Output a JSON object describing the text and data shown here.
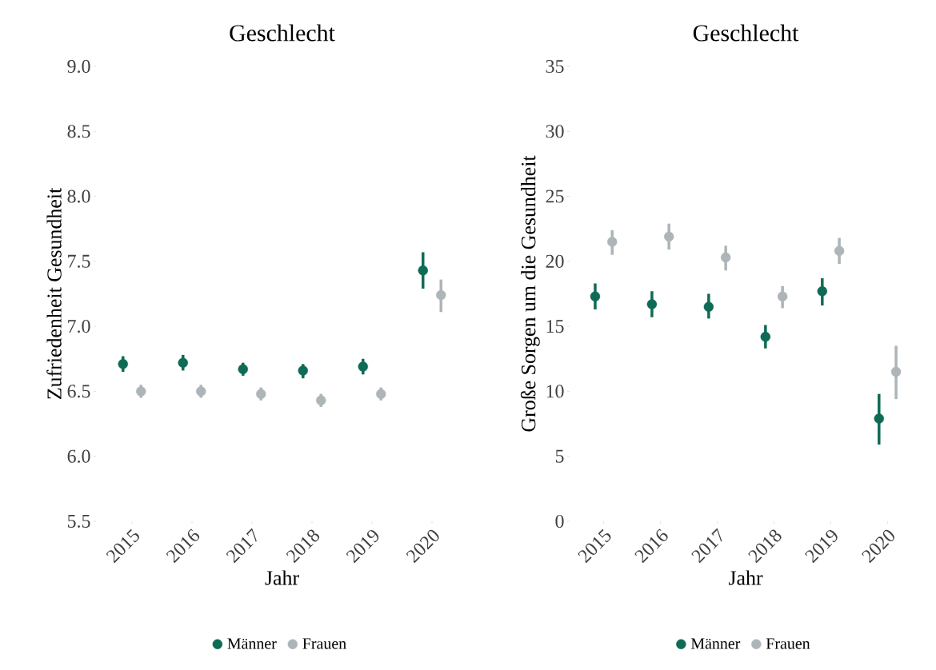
{
  "chart_data": [
    {
      "type": "scatter",
      "title": "Geschlecht",
      "xlabel": "Jahr",
      "ylabel": "Zufriedenheit Gesundheit",
      "categories": [
        "2015",
        "2016",
        "2017",
        "2018",
        "2019",
        "2020"
      ],
      "marker": "circle",
      "legend": "bottom",
      "ylim": [
        5.5,
        9.0
      ],
      "yticks": [
        {
          "value": 5.5,
          "label": "5.5"
        },
        {
          "value": 6.0,
          "label": "6.0"
        },
        {
          "value": 6.5,
          "label": "6.5"
        },
        {
          "value": 7.0,
          "label": "7.0"
        },
        {
          "value": 7.5,
          "label": "7.5"
        },
        {
          "value": 8.0,
          "label": "8.0"
        },
        {
          "value": 8.5,
          "label": "8.5"
        },
        {
          "value": 9.0,
          "label": "9.0"
        }
      ],
      "series": [
        {
          "name": "Männer",
          "color": "#0f6b55",
          "values": [
            6.71,
            6.72,
            6.67,
            6.66,
            6.69,
            7.43
          ],
          "errors": [
            [
              6.65,
              6.77
            ],
            [
              6.66,
              6.78
            ],
            [
              6.62,
              6.72
            ],
            [
              6.6,
              6.71
            ],
            [
              6.63,
              6.75
            ],
            [
              7.29,
              7.57
            ]
          ]
        },
        {
          "name": "Frauen",
          "color": "#adb5b8",
          "values": [
            6.5,
            6.5,
            6.48,
            6.43,
            6.48,
            7.24
          ],
          "errors": [
            [
              6.45,
              6.55
            ],
            [
              6.45,
              6.55
            ],
            [
              6.43,
              6.53
            ],
            [
              6.38,
              6.48
            ],
            [
              6.43,
              6.53
            ],
            [
              7.11,
              7.36
            ]
          ]
        }
      ]
    },
    {
      "type": "scatter",
      "title": "Geschlecht",
      "xlabel": "Jahr",
      "ylabel": "Große Sorgen um die Gesundheit",
      "categories": [
        "2015",
        "2016",
        "2017",
        "2018",
        "2019",
        "2020"
      ],
      "marker": "circle",
      "legend": "bottom",
      "ylim": [
        0,
        35
      ],
      "yticks": [
        0,
        5,
        10,
        15,
        20,
        25,
        30,
        35
      ],
      "series": [
        {
          "name": "Männer",
          "color": "#0f6b55",
          "values": [
            17.3,
            16.7,
            16.5,
            14.2,
            17.7,
            7.9
          ],
          "errors": [
            [
              16.3,
              18.3
            ],
            [
              15.7,
              17.7
            ],
            [
              15.6,
              17.5
            ],
            [
              13.3,
              15.1
            ],
            [
              16.6,
              18.7
            ],
            [
              5.9,
              9.8
            ]
          ]
        },
        {
          "name": "Frauen",
          "color": "#adb5b8",
          "values": [
            21.5,
            21.9,
            20.3,
            17.3,
            20.8,
            11.5
          ],
          "errors": [
            [
              20.5,
              22.4
            ],
            [
              20.9,
              22.9
            ],
            [
              19.3,
              21.2
            ],
            [
              16.4,
              18.1
            ],
            [
              19.8,
              21.8
            ],
            [
              9.4,
              13.5
            ]
          ]
        }
      ]
    }
  ]
}
